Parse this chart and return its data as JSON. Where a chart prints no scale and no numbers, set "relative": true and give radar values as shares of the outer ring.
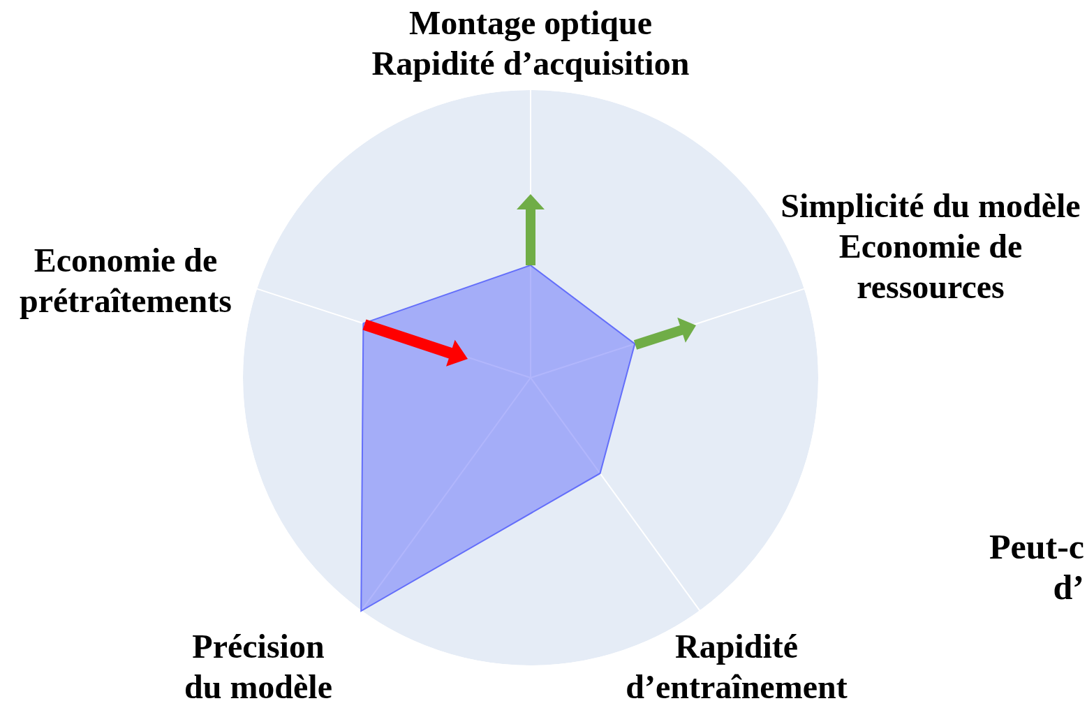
{
  "chart_data": {
    "type": "radar",
    "relative": true,
    "grid": true,
    "categories": [
      "Montage optique\nRapidité d’acquisition",
      "Simplicité du modèle\nEconomie de\nressources",
      "Rapidité\nd’entraînement",
      "Précision\ndu modèle",
      "Economie de\nprétraîtements"
    ],
    "series": [
      {
        "color": "#636efa",
        "values": [
          0.39,
          0.38,
          0.41,
          1.0,
          0.61
        ]
      }
    ],
    "annotations": [
      "Peut-c",
      "d’"
    ]
  }
}
